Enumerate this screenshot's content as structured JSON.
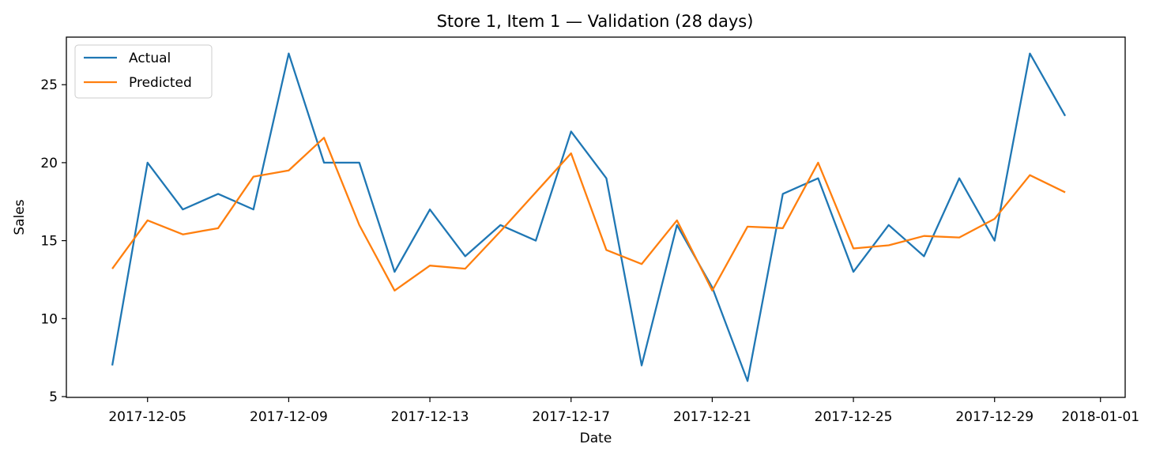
{
  "chart_data": {
    "type": "line",
    "title": "Store 1, Item 1 — Validation (28 days)",
    "xlabel": "Date",
    "ylabel": "Sales",
    "x": [
      "2017-12-04",
      "2017-12-05",
      "2017-12-06",
      "2017-12-07",
      "2017-12-08",
      "2017-12-09",
      "2017-12-10",
      "2017-12-11",
      "2017-12-12",
      "2017-12-13",
      "2017-12-14",
      "2017-12-15",
      "2017-12-16",
      "2017-12-17",
      "2017-12-18",
      "2017-12-19",
      "2017-12-20",
      "2017-12-21",
      "2017-12-22",
      "2017-12-23",
      "2017-12-24",
      "2017-12-25",
      "2017-12-26",
      "2017-12-27",
      "2017-12-28",
      "2017-12-29",
      "2017-12-30",
      "2017-12-31"
    ],
    "series": [
      {
        "name": "Actual",
        "color": "#1f77b4",
        "values": [
          7,
          20,
          17,
          18,
          17,
          27,
          20,
          20,
          13,
          17,
          14,
          16,
          15,
          22,
          19,
          7,
          16,
          12,
          6,
          18,
          19,
          13,
          16,
          14,
          19,
          15,
          27,
          23
        ]
      },
      {
        "name": "Predicted",
        "color": "#ff7f0e",
        "values": [
          13.2,
          16.3,
          15.4,
          15.8,
          19.1,
          19.5,
          21.6,
          16.0,
          11.8,
          13.4,
          13.2,
          15.6,
          18.1,
          20.6,
          14.4,
          13.5,
          16.3,
          11.8,
          15.9,
          15.8,
          20.0,
          14.5,
          14.7,
          15.3,
          15.2,
          16.4,
          19.2,
          18.1
        ]
      }
    ],
    "x_ticks": [
      "2017-12-05",
      "2017-12-09",
      "2017-12-13",
      "2017-12-17",
      "2017-12-21",
      "2017-12-25",
      "2017-12-29",
      "2018-01-01"
    ],
    "y_ticks": [
      5,
      10,
      15,
      20,
      25
    ],
    "xlim": [
      "2017-12-02.7",
      "2018-01-01.7"
    ],
    "ylim": [
      4.95,
      28.05
    ],
    "grid": false,
    "legend": "top-left"
  }
}
